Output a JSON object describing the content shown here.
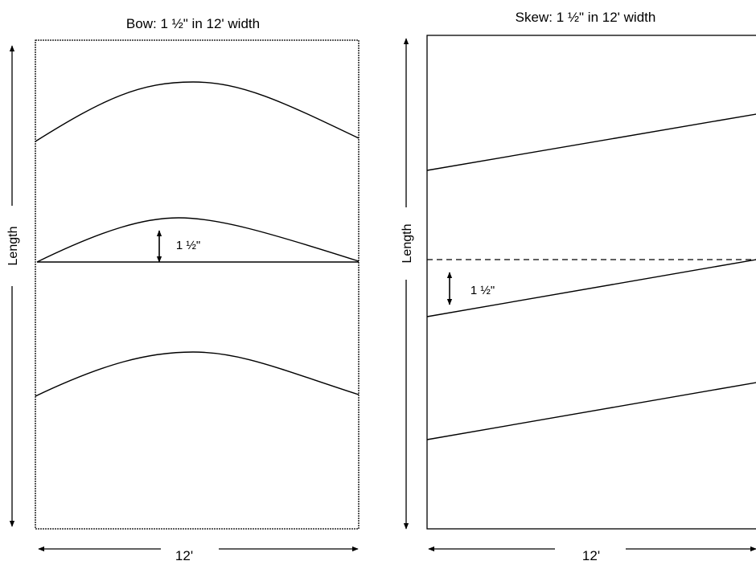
{
  "bow": {
    "title": "Bow:  1 ½\" in 12' width",
    "length_label": "Length",
    "width_label": "12'",
    "offset_label": "1 ½\""
  },
  "skew": {
    "title": "Skew:  1 ½\" in 12' width",
    "length_label": "Length",
    "width_label": "12'",
    "offset_label": "1 ½\""
  }
}
